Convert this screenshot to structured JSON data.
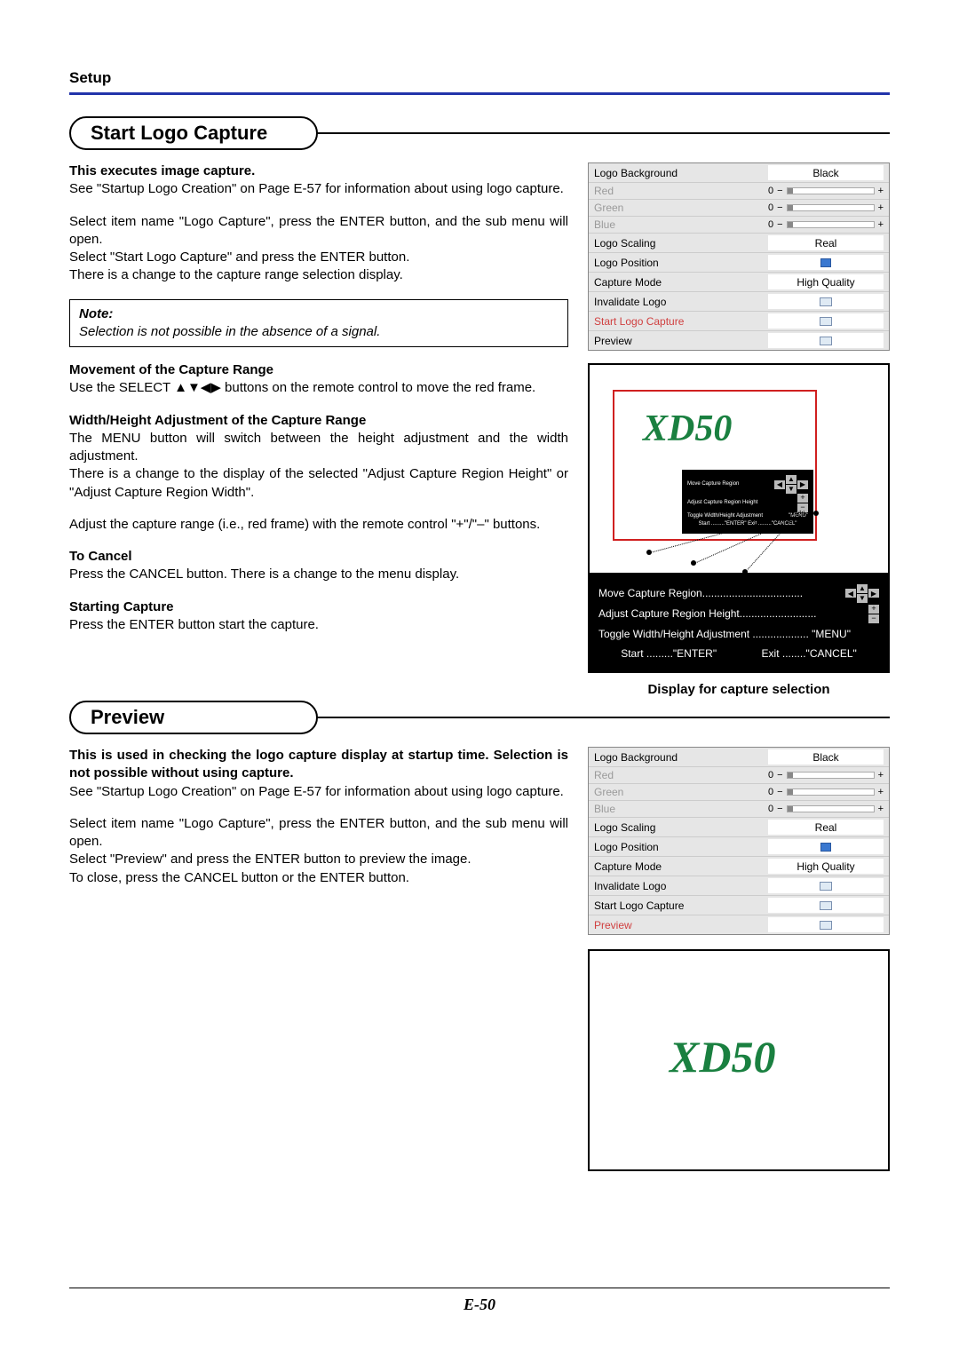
{
  "header": {
    "setup": "Setup"
  },
  "section1": {
    "title": "Start Logo Capture",
    "intro_bold": "This executes image capture.",
    "intro_text": "See \"Startup Logo Creation\" on Page E-57 for information about using logo capture.",
    "para2a": "Select item name \"Logo Capture\", press the ENTER button, and the sub menu will open.",
    "para2b": "Select \"Start Logo Capture\" and press the ENTER button.",
    "para2c": "There is a change to the capture range selection display.",
    "note_title": "Note:",
    "note_text": "Selection is not possible in the absence of a signal.",
    "move_h": "Movement of the Capture Range",
    "move_t": "Use the SELECT ▲▼◀▶ buttons on the remote control to move the red frame.",
    "wh_h": "Width/Height Adjustment of the Capture Range",
    "wh_t1": "The MENU button will switch between the height adjustment and the width adjustment.",
    "wh_t2": "There is a change to the display of the selected \"Adjust Capture Region Height\" or \"Adjust Capture Region Width\".",
    "wh_t3": "Adjust the capture range (i.e., red frame) with the remote control \"+\"/\"–\" buttons.",
    "cancel_h": "To Cancel",
    "cancel_t": "Press the CANCEL button. There is a change to the menu display.",
    "start_h": "Starting Capture",
    "start_t": "Press the ENTER button start the capture."
  },
  "menu": {
    "rows": [
      {
        "label": "Logo Background",
        "val": "Black",
        "type": "white"
      },
      {
        "label": "Red",
        "val": "0",
        "type": "slider",
        "dim": true
      },
      {
        "label": "Green",
        "val": "0",
        "type": "slider",
        "dim": true
      },
      {
        "label": "Blue",
        "val": "0",
        "type": "slider",
        "dim": true
      },
      {
        "label": "Logo Scaling",
        "val": "Real",
        "type": "white"
      },
      {
        "label": "Logo Position",
        "val": "",
        "type": "play"
      },
      {
        "label": "Capture Mode",
        "val": "High Quality",
        "type": "white"
      },
      {
        "label": "Invalidate Logo",
        "val": "",
        "type": "icon"
      },
      {
        "label": "Start Logo Capture",
        "val": "",
        "type": "icon",
        "hl": true
      },
      {
        "label": "Preview",
        "val": "",
        "type": "icon"
      }
    ]
  },
  "capture": {
    "brand": "XD50",
    "osd": {
      "l1": "Move Capture Region",
      "l2": "Adjust Capture Region Height",
      "l3": "Toggle Width/Height Adjustment",
      "l3v": "\"MENU\"",
      "l4": "Start .........\"ENTER\"    Exit .........\"CANCEL\""
    },
    "legend": {
      "l1": "Move Capture Region..................................",
      "l2": "Adjust Capture Region Height..........................",
      "l3": "Toggle Width/Height Adjustment ................... \"MENU\"",
      "l4a": "Start .........\"ENTER\"",
      "l4b": "Exit ........\"CANCEL\""
    },
    "caption": "Display for capture selection"
  },
  "section2": {
    "title": "Preview",
    "intro_bold": "This is used in checking the logo capture display at startup time. Selection is not possible without using capture.",
    "intro_text": "See \"Startup Logo Creation\" on Page E-57 for information about using logo capture.",
    "p2a": "Select item name \"Logo Capture\", press the ENTER button, and the sub menu will open.",
    "p2b": "Select \"Preview\" and press the ENTER button to preview the image.",
    "p2c": "To close, press the CANCEL button or the ENTER button."
  },
  "menu2_highlight_index": 9,
  "page_no": "E-50"
}
